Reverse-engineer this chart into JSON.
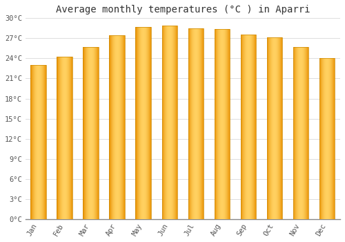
{
  "title": "Average monthly temperatures (°C ) in Aparri",
  "months": [
    "Jan",
    "Feb",
    "Mar",
    "Apr",
    "May",
    "Jun",
    "Jul",
    "Aug",
    "Sep",
    "Oct",
    "Nov",
    "Dec"
  ],
  "temperatures": [
    23.0,
    24.2,
    25.7,
    27.5,
    28.7,
    28.9,
    28.5,
    28.4,
    27.6,
    27.1,
    25.7,
    24.0
  ],
  "bar_color_center": "#FFD060",
  "bar_color_edge": "#E89000",
  "bar_color_mid": "#FFC030",
  "ylim": [
    0,
    30
  ],
  "yticks": [
    0,
    3,
    6,
    9,
    12,
    15,
    18,
    21,
    24,
    27,
    30
  ],
  "ytick_labels": [
    "0°C",
    "3°C",
    "6°C",
    "9°C",
    "12°C",
    "15°C",
    "18°C",
    "21°C",
    "24°C",
    "27°C",
    "30°C"
  ],
  "background_color": "#ffffff",
  "plot_bg_color": "#ffffff",
  "grid_color": "#dddddd",
  "title_fontsize": 10,
  "tick_fontsize": 7.5,
  "bar_width": 0.6
}
